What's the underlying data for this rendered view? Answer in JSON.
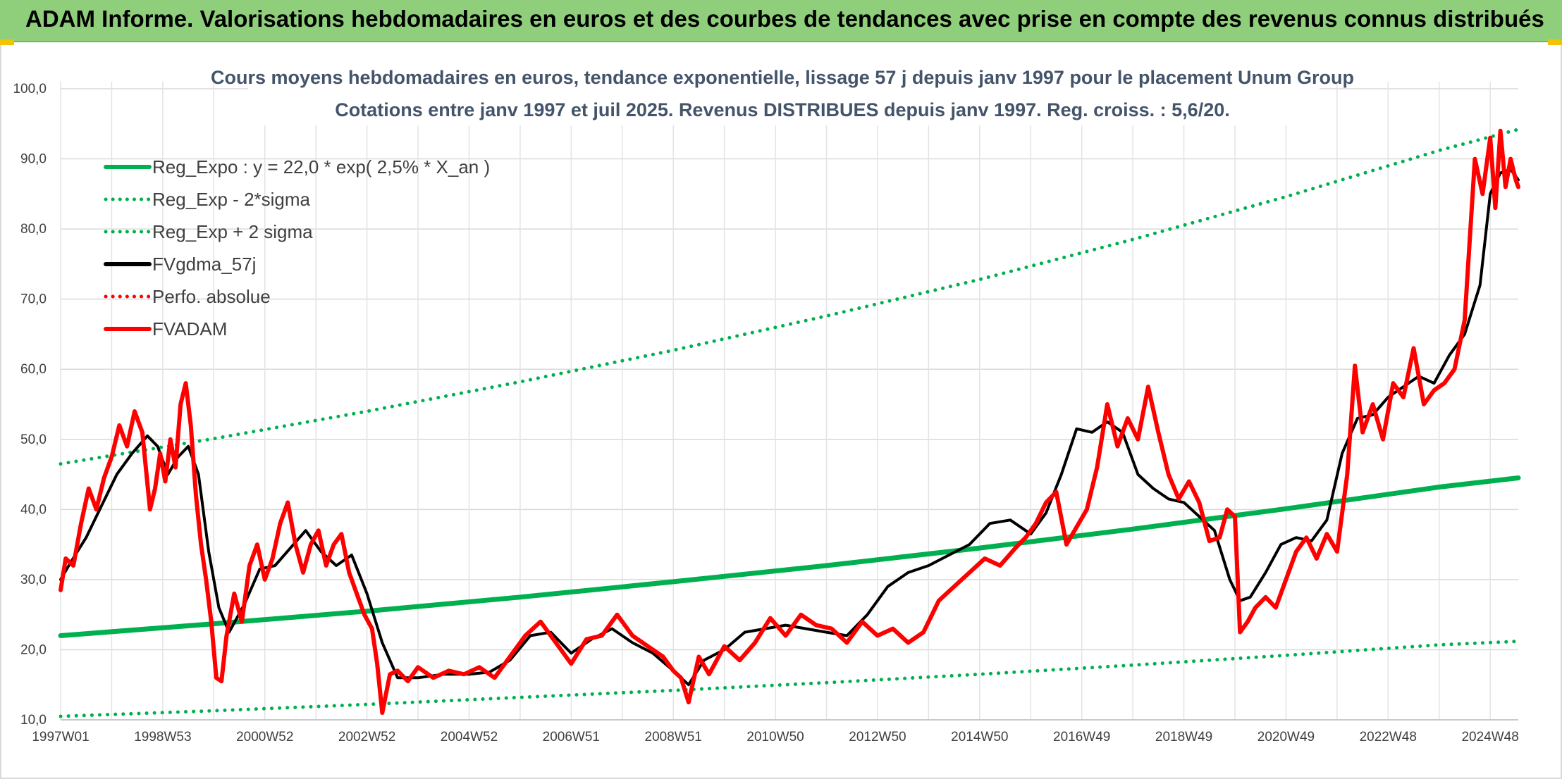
{
  "banner": {
    "text": "ADAM Informe. Valorisations hebdomadaires en euros et des courbes de tendances avec prise en compte des revenus connus distribués"
  },
  "chart_data": {
    "type": "line",
    "title": "Cours moyens hebdomadaires en euros, tendance exponentielle, lissage 57 j depuis janv 1997 pour le placement Unum Group",
    "subtitle": "Cotations entre janv 1997 et juil 2025. Revenus DISTRIBUES depuis janv 1997. Reg. croiss. : 5,6/20.",
    "xlabel": "",
    "ylabel": "",
    "ylim": [
      10,
      100
    ],
    "yticks": [
      "10,0",
      "20,0",
      "30,0",
      "40,0",
      "50,0",
      "60,0",
      "70,0",
      "80,0",
      "90,0",
      "100,0"
    ],
    "xlim": [
      1997.0,
      2025.55
    ],
    "xticks": [
      {
        "label": "1997W01",
        "x": 1997.0
      },
      {
        "label": "1998W53",
        "x": 1999.0
      },
      {
        "label": "2000W52",
        "x": 2001.0
      },
      {
        "label": "2002W52",
        "x": 2003.0
      },
      {
        "label": "2004W52",
        "x": 2005.0
      },
      {
        "label": "2006W51",
        "x": 2007.0
      },
      {
        "label": "2008W51",
        "x": 2009.0
      },
      {
        "label": "2010W50",
        "x": 2011.0
      },
      {
        "label": "2012W50",
        "x": 2013.0
      },
      {
        "label": "2014W50",
        "x": 2015.0
      },
      {
        "label": "2016W49",
        "x": 2017.0
      },
      {
        "label": "2018W49",
        "x": 2019.0
      },
      {
        "label": "2020W49",
        "x": 2021.0
      },
      {
        "label": "2022W48",
        "x": 2023.0
      },
      {
        "label": "2024W48",
        "x": 2025.0
      }
    ],
    "grid": true,
    "legend_position": "top-left",
    "trend": {
      "base": 22.0,
      "rate": 0.025,
      "sigma_factor": 0.48
    },
    "series": [
      {
        "name": "Reg_Expo : y = 22,0 * exp( 2,5% *  X_an )",
        "color": "#00b050",
        "style": "solid",
        "width": 7,
        "x": [
          1997.0,
          2000.0,
          2003.0,
          2006.0,
          2009.0,
          2012.0,
          2015.0,
          2018.0,
          2021.0,
          2024.0,
          2025.55
        ],
        "values": [
          22.0,
          23.7,
          25.5,
          27.5,
          29.7,
          32.0,
          34.5,
          37.2,
          40.1,
          43.2,
          44.5
        ]
      },
      {
        "name": "Reg_Exp - 2*sigma",
        "color": "#00b050",
        "style": "dotted",
        "width": 5,
        "x": [
          1997.0,
          2000.0,
          2003.0,
          2006.0,
          2009.0,
          2012.0,
          2015.0,
          2018.0,
          2021.0,
          2024.0,
          2025.55
        ],
        "values": [
          10.5,
          11.3,
          12.2,
          13.2,
          14.2,
          15.3,
          16.5,
          17.8,
          19.2,
          20.7,
          21.2
        ]
      },
      {
        "name": "Reg_Exp + 2 sigma",
        "color": "#00b050",
        "style": "dotted",
        "width": 5,
        "x": [
          1997.0,
          2000.0,
          2003.0,
          2006.0,
          2009.0,
          2012.0,
          2015.0,
          2018.0,
          2021.0,
          2024.0,
          2025.55
        ],
        "values": [
          46.5,
          50.1,
          54.0,
          58.2,
          62.7,
          67.6,
          72.8,
          78.5,
          84.6,
          91.2,
          94.2
        ]
      },
      {
        "name": "FVgdma_57j",
        "color": "#000000",
        "style": "solid",
        "width": 4,
        "x": [
          1997.0,
          1997.2,
          1997.5,
          1997.8,
          1998.1,
          1998.4,
          1998.7,
          1998.9,
          1999.1,
          1999.3,
          1999.5,
          1999.7,
          1999.9,
          2000.1,
          2000.3,
          2000.6,
          2000.9,
          2001.2,
          2001.5,
          2001.8,
          2002.1,
          2002.4,
          2002.7,
          2003.0,
          2003.3,
          2003.6,
          2004.0,
          2004.5,
          2005.0,
          2005.4,
          2005.8,
          2006.2,
          2006.6,
          2007.0,
          2007.4,
          2007.8,
          2008.2,
          2008.6,
          2009.0,
          2009.3,
          2009.6,
          2010.0,
          2010.4,
          2010.8,
          2011.2,
          2011.6,
          2012.0,
          2012.4,
          2012.8,
          2013.2,
          2013.6,
          2014.0,
          2014.4,
          2014.8,
          2015.2,
          2015.6,
          2016.0,
          2016.3,
          2016.6,
          2016.9,
          2017.2,
          2017.5,
          2017.8,
          2018.1,
          2018.4,
          2018.7,
          2019.0,
          2019.3,
          2019.6,
          2019.9,
          2020.1,
          2020.3,
          2020.6,
          2020.9,
          2021.2,
          2021.5,
          2021.8,
          2022.1,
          2022.4,
          2022.7,
          2023.0,
          2023.3,
          2023.6,
          2023.9,
          2024.2,
          2024.5,
          2024.8,
          2025.0,
          2025.2,
          2025.4,
          2025.55
        ],
        "values": [
          30.0,
          32.5,
          36.0,
          40.5,
          45.0,
          48.0,
          50.5,
          49.0,
          45.0,
          47.5,
          49.0,
          45.0,
          34.0,
          26.0,
          22.5,
          26.5,
          31.5,
          32.0,
          34.5,
          37.0,
          34.0,
          32.0,
          33.5,
          28.0,
          21.0,
          16.0,
          16.0,
          16.5,
          16.5,
          16.8,
          18.5,
          22.0,
          22.5,
          19.5,
          21.5,
          23.0,
          21.0,
          19.5,
          17.0,
          15.0,
          18.5,
          20.0,
          22.5,
          23.0,
          23.5,
          23.0,
          22.5,
          22.0,
          25.0,
          29.0,
          31.0,
          32.0,
          33.5,
          35.0,
          38.0,
          38.5,
          36.5,
          39.5,
          45.0,
          51.5,
          51.0,
          52.5,
          51.0,
          45.0,
          43.0,
          41.5,
          41.0,
          39.0,
          37.0,
          30.0,
          27.0,
          27.5,
          31.0,
          35.0,
          36.0,
          35.5,
          38.5,
          48.0,
          53.0,
          53.5,
          56.0,
          57.5,
          59.0,
          58.0,
          62.0,
          65.0,
          72.0,
          85.0,
          88.0,
          88.5,
          87.0
        ]
      },
      {
        "name": "Perfo. absolue",
        "color": "#ff0000",
        "style": "dotted",
        "width": 3,
        "x": [],
        "values": []
      },
      {
        "name": "FVADAM",
        "color": "#ff0000",
        "style": "solid",
        "width": 6,
        "x": [
          1997.0,
          1997.1,
          1997.25,
          1997.4,
          1997.55,
          1997.7,
          1997.85,
          1998.0,
          1998.15,
          1998.3,
          1998.45,
          1998.6,
          1998.75,
          1998.85,
          1998.95,
          1999.05,
          1999.15,
          1999.25,
          1999.35,
          1999.45,
          1999.55,
          1999.65,
          1999.75,
          1999.85,
          1999.95,
          2000.05,
          2000.15,
          2000.25,
          2000.4,
          2000.55,
          2000.7,
          2000.85,
          2001.0,
          2001.15,
          2001.3,
          2001.45,
          2001.6,
          2001.75,
          2001.9,
          2002.05,
          2002.2,
          2002.35,
          2002.5,
          2002.65,
          2002.8,
          2002.95,
          2003.1,
          2003.2,
          2003.3,
          2003.45,
          2003.6,
          2003.8,
          2004.0,
          2004.3,
          2004.6,
          2004.9,
          2005.2,
          2005.5,
          2005.8,
          2006.1,
          2006.4,
          2006.7,
          2007.0,
          2007.3,
          2007.6,
          2007.9,
          2008.2,
          2008.5,
          2008.8,
          2009.0,
          2009.15,
          2009.3,
          2009.5,
          2009.7,
          2010.0,
          2010.3,
          2010.6,
          2010.9,
          2011.2,
          2011.5,
          2011.8,
          2012.1,
          2012.4,
          2012.7,
          2013.0,
          2013.3,
          2013.6,
          2013.9,
          2014.2,
          2014.5,
          2014.8,
          2015.1,
          2015.4,
          2015.7,
          2015.9,
          2016.1,
          2016.3,
          2016.5,
          2016.7,
          2016.9,
          2017.1,
          2017.3,
          2017.5,
          2017.7,
          2017.9,
          2018.1,
          2018.3,
          2018.5,
          2018.7,
          2018.9,
          2019.1,
          2019.3,
          2019.5,
          2019.7,
          2019.85,
          2020.0,
          2020.1,
          2020.25,
          2020.4,
          2020.6,
          2020.8,
          2021.0,
          2021.2,
          2021.4,
          2021.6,
          2021.8,
          2022.0,
          2022.2,
          2022.35,
          2022.5,
          2022.7,
          2022.9,
          2023.1,
          2023.3,
          2023.5,
          2023.7,
          2023.9,
          2024.1,
          2024.3,
          2024.5,
          2024.7,
          2024.85,
          2025.0,
          2025.1,
          2025.2,
          2025.3,
          2025.4,
          2025.5,
          2025.55
        ],
        "values": [
          28.5,
          33.0,
          32.0,
          38.0,
          43.0,
          40.0,
          44.5,
          47.5,
          52.0,
          49.0,
          54.0,
          51.0,
          40.0,
          43.0,
          48.0,
          44.0,
          50.0,
          46.0,
          55.0,
          58.0,
          52.0,
          42.0,
          35.0,
          30.0,
          24.0,
          16.0,
          15.5,
          22.0,
          28.0,
          24.0,
          32.0,
          35.0,
          30.0,
          33.0,
          38.0,
          41.0,
          35.0,
          31.0,
          35.0,
          37.0,
          32.0,
          35.0,
          36.5,
          31.0,
          28.0,
          25.0,
          23.0,
          18.0,
          11.0,
          16.5,
          17.0,
          15.5,
          17.5,
          16.0,
          17.0,
          16.5,
          17.5,
          16.0,
          19.0,
          22.0,
          24.0,
          21.0,
          18.0,
          21.5,
          22.0,
          25.0,
          22.0,
          20.5,
          19.0,
          17.0,
          16.0,
          12.5,
          19.0,
          16.5,
          20.5,
          18.5,
          21.0,
          24.5,
          22.0,
          25.0,
          23.5,
          23.0,
          21.0,
          24.0,
          22.0,
          23.0,
          21.0,
          22.5,
          27.0,
          29.0,
          31.0,
          33.0,
          32.0,
          34.5,
          36.0,
          38.0,
          41.0,
          42.5,
          35.0,
          37.5,
          40.0,
          46.0,
          55.0,
          49.0,
          53.0,
          50.0,
          57.5,
          51.0,
          45.0,
          41.5,
          44.0,
          41.0,
          35.5,
          36.0,
          40.0,
          39.0,
          22.5,
          24.0,
          26.0,
          27.5,
          26.0,
          30.0,
          34.0,
          36.0,
          33.0,
          36.5,
          34.0,
          45.0,
          60.5,
          51.0,
          55.0,
          50.0,
          58.0,
          56.0,
          63.0,
          55.0,
          57.0,
          58.0,
          60.0,
          67.0,
          90.0,
          85.0,
          93.0,
          83.0,
          94.0,
          86.0,
          90.0,
          87.0,
          86.0
        ]
      }
    ]
  }
}
